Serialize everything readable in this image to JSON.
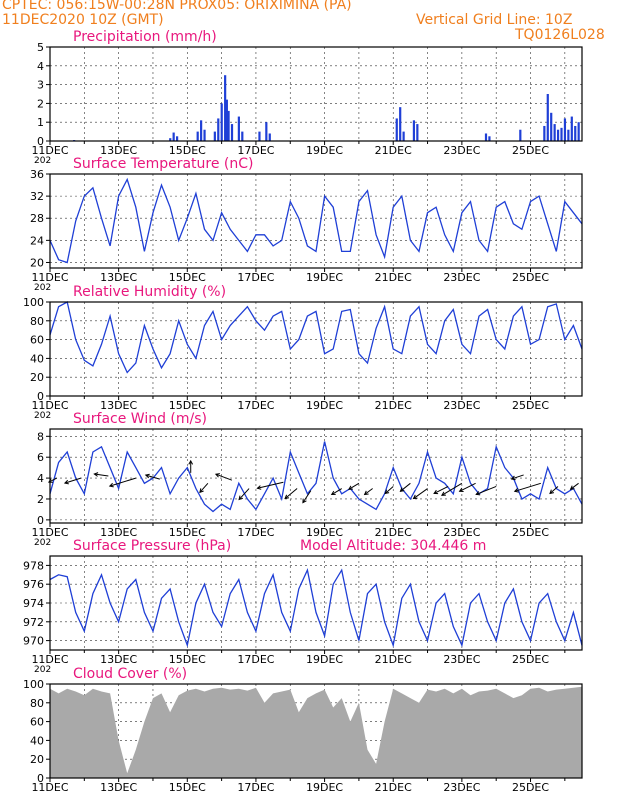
{
  "header": {
    "line1": "CPTEC:   056:15W-00:28N   PROX05: ORIXIMINA (PA)",
    "line2_left": "11DEC2020 10Z (GMT)",
    "line2_right": "Vertical Grid Line: 10Z",
    "line3_right": "TQ0126L028"
  },
  "colors": {
    "header": "#f07f1e",
    "title": "#e8177d",
    "series": "#1f3fd6",
    "cloud": "#a9a9a9",
    "wind_arrow": "#000000"
  },
  "x_tick_labels": [
    "11DEC",
    "13DEC",
    "15DEC",
    "17DEC",
    "19DEC",
    "21DEC",
    "23DEC",
    "25DEC"
  ],
  "stub_label": "202",
  "model_altitude": "Model Altitude: 304.446 m",
  "chart_data": [
    {
      "id": "precip",
      "type": "bar",
      "title": "Precipitation (mm/h)",
      "ylim": [
        0,
        5
      ],
      "yticks": [
        "0",
        "1",
        "2",
        "3",
        "4",
        "5"
      ],
      "x_unit": "days since 11DEC2020 10Z",
      "points": [
        [
          0.7,
          0.05
        ],
        [
          3.5,
          0.15
        ],
        [
          3.6,
          0.45
        ],
        [
          3.7,
          0.25
        ],
        [
          4.3,
          0.5
        ],
        [
          4.4,
          1.1
        ],
        [
          4.5,
          0.6
        ],
        [
          4.8,
          0.5
        ],
        [
          4.9,
          1.2
        ],
        [
          5.0,
          2.0
        ],
        [
          5.1,
          3.5
        ],
        [
          5.15,
          2.2
        ],
        [
          5.2,
          1.6
        ],
        [
          5.3,
          0.9
        ],
        [
          5.5,
          1.3
        ],
        [
          5.6,
          0.5
        ],
        [
          6.1,
          0.5
        ],
        [
          6.3,
          1.0
        ],
        [
          6.4,
          0.4
        ],
        [
          10.1,
          1.2
        ],
        [
          10.2,
          1.8
        ],
        [
          10.3,
          0.5
        ],
        [
          10.6,
          1.1
        ],
        [
          10.7,
          0.9
        ],
        [
          12.7,
          0.4
        ],
        [
          12.8,
          0.25
        ],
        [
          13.7,
          0.6
        ],
        [
          14.4,
          0.8
        ],
        [
          14.5,
          2.5
        ],
        [
          14.6,
          1.5
        ],
        [
          14.7,
          0.9
        ],
        [
          14.8,
          0.6
        ],
        [
          14.9,
          0.7
        ],
        [
          15.0,
          1.2
        ],
        [
          15.1,
          0.6
        ],
        [
          15.2,
          1.3
        ],
        [
          15.3,
          0.8
        ],
        [
          15.4,
          1.0
        ]
      ]
    },
    {
      "id": "temp",
      "type": "line",
      "title": "Surface Temperature (nC)",
      "ylim": [
        19,
        36
      ],
      "yticks": [
        "20",
        "24",
        "28",
        "32",
        "36"
      ],
      "x": [
        0,
        0.25,
        0.5,
        0.75,
        1,
        1.25,
        1.5,
        1.75,
        2,
        2.25,
        2.5,
        2.75,
        3,
        3.25,
        3.5,
        3.75,
        4,
        4.25,
        4.5,
        4.75,
        5,
        5.25,
        5.5,
        5.75,
        6,
        6.25,
        6.5,
        6.75,
        7,
        7.25,
        7.5,
        7.75,
        8,
        8.25,
        8.5,
        8.75,
        9,
        9.25,
        9.5,
        9.75,
        10,
        10.25,
        10.5,
        10.75,
        11,
        11.25,
        11.5,
        11.75,
        12,
        12.25,
        12.5,
        12.75,
        13,
        13.25,
        13.5,
        13.75,
        14,
        14.25,
        14.5,
        14.75,
        15,
        15.25,
        15.5
      ],
      "values": [
        24,
        20.5,
        20,
        27.5,
        32,
        33.5,
        28,
        23,
        32,
        35,
        30,
        22,
        29,
        34,
        30,
        24,
        28,
        32.5,
        26,
        24,
        29,
        26,
        24,
        22,
        25,
        25,
        23,
        24,
        31,
        28,
        23,
        22,
        32,
        30,
        22,
        22,
        31,
        33,
        25,
        21,
        30,
        32,
        24,
        22,
        29,
        30,
        25,
        22,
        29,
        31,
        24,
        22,
        30,
        31,
        27,
        26,
        31,
        32,
        27,
        22,
        31,
        29,
        27
      ]
    },
    {
      "id": "rh",
      "type": "line",
      "title": "Relative Humidity (%)",
      "ylim": [
        0,
        100
      ],
      "yticks": [
        "0",
        "20",
        "40",
        "60",
        "80",
        "100"
      ],
      "x": [
        0,
        0.25,
        0.5,
        0.75,
        1,
        1.25,
        1.5,
        1.75,
        2,
        2.25,
        2.5,
        2.75,
        3,
        3.25,
        3.5,
        3.75,
        4,
        4.25,
        4.5,
        4.75,
        5,
        5.25,
        5.5,
        5.75,
        6,
        6.25,
        6.5,
        6.75,
        7,
        7.25,
        7.5,
        7.75,
        8,
        8.25,
        8.5,
        8.75,
        9,
        9.25,
        9.5,
        9.75,
        10,
        10.25,
        10.5,
        10.75,
        11,
        11.25,
        11.5,
        11.75,
        12,
        12.25,
        12.5,
        12.75,
        13,
        13.25,
        13.5,
        13.75,
        14,
        14.25,
        14.5,
        14.75,
        15,
        15.25,
        15.5
      ],
      "values": [
        65,
        95,
        100,
        60,
        38,
        32,
        55,
        85,
        45,
        25,
        35,
        75,
        50,
        30,
        45,
        80,
        55,
        40,
        75,
        90,
        60,
        75,
        85,
        95,
        80,
        70,
        85,
        90,
        50,
        60,
        85,
        90,
        45,
        50,
        90,
        92,
        45,
        35,
        72,
        95,
        50,
        45,
        85,
        95,
        55,
        45,
        80,
        92,
        55,
        45,
        85,
        92,
        60,
        50,
        85,
        95,
        55,
        60,
        95,
        98,
        60,
        75,
        50
      ]
    },
    {
      "id": "wind",
      "type": "line",
      "title": "Surface Wind (m/s)",
      "ylim": [
        -0.3,
        8.7
      ],
      "yticks": [
        "0",
        "2",
        "4",
        "6",
        "8"
      ],
      "x": [
        0,
        0.25,
        0.5,
        0.75,
        1,
        1.25,
        1.5,
        1.75,
        2,
        2.25,
        2.5,
        2.75,
        3,
        3.25,
        3.5,
        3.75,
        4,
        4.25,
        4.5,
        4.75,
        5,
        5.25,
        5.5,
        5.75,
        6,
        6.25,
        6.5,
        6.75,
        7,
        7.25,
        7.5,
        7.75,
        8,
        8.25,
        8.5,
        8.75,
        9,
        9.25,
        9.5,
        9.75,
        10,
        10.25,
        10.5,
        10.75,
        11,
        11.25,
        11.5,
        11.75,
        12,
        12.25,
        12.5,
        12.75,
        13,
        13.25,
        13.5,
        13.75,
        14,
        14.25,
        14.5,
        14.75,
        15,
        15.25,
        15.5
      ],
      "values": [
        2.5,
        5.5,
        6.5,
        4,
        2.5,
        6.5,
        7,
        5,
        3,
        6.5,
        5,
        3.5,
        4,
        5,
        2.5,
        4,
        5,
        3,
        1.5,
        0.8,
        1.5,
        1,
        3.5,
        2,
        1,
        2.5,
        4,
        2,
        6.5,
        4.5,
        2.5,
        3.5,
        7.5,
        4,
        2.5,
        3,
        2,
        1.5,
        1,
        2.5,
        5,
        3,
        2,
        3.5,
        6.5,
        4,
        3.5,
        2.5,
        6,
        3.5,
        2.5,
        3,
        7,
        5,
        4,
        2,
        2.5,
        2,
        5,
        3,
        2.5,
        3,
        1.5
      ],
      "arrows": [
        [
          0.2,
          4.0,
          -8,
          4
        ],
        [
          0.9,
          4.0,
          -16,
          5
        ],
        [
          1.7,
          4.2,
          -14,
          -2
        ],
        [
          2.5,
          4.0,
          -26,
          8
        ],
        [
          3.2,
          3.9,
          -14,
          -4
        ],
        [
          4.1,
          4.5,
          0,
          -12
        ],
        [
          4.6,
          3.5,
          -8,
          9
        ],
        [
          5.3,
          3.8,
          -16,
          -6
        ],
        [
          5.8,
          3.0,
          -10,
          11
        ],
        [
          6.8,
          3.6,
          -26,
          6
        ],
        [
          7.2,
          3.0,
          -12,
          10
        ],
        [
          7.6,
          2.8,
          -8,
          12
        ],
        [
          8.5,
          3.0,
          -10,
          6
        ],
        [
          9.0,
          3.5,
          -10,
          6
        ],
        [
          9.4,
          3.0,
          -8,
          6
        ],
        [
          10.0,
          3.2,
          -8,
          7
        ],
        [
          10.5,
          3.5,
          -10,
          8
        ],
        [
          11.0,
          3.0,
          -14,
          10
        ],
        [
          11.6,
          3.2,
          -14,
          7
        ],
        [
          12.0,
          3.5,
          -20,
          12
        ],
        [
          12.4,
          3.5,
          -16,
          8
        ],
        [
          13.0,
          3.2,
          -20,
          8
        ],
        [
          13.8,
          4.3,
          -12,
          4
        ],
        [
          14.3,
          3.5,
          -26,
          8
        ],
        [
          14.8,
          3.2,
          -8,
          7
        ],
        [
          15.4,
          3.5,
          -8,
          6
        ]
      ]
    },
    {
      "id": "pres",
      "type": "line",
      "title": "Surface Pressure (hPa)",
      "ylim": [
        969,
        979
      ],
      "yticks": [
        "970",
        "972",
        "974",
        "976",
        "978"
      ],
      "x": [
        0,
        0.25,
        0.5,
        0.75,
        1,
        1.25,
        1.5,
        1.75,
        2,
        2.25,
        2.5,
        2.75,
        3,
        3.25,
        3.5,
        3.75,
        4,
        4.25,
        4.5,
        4.75,
        5,
        5.25,
        5.5,
        5.75,
        6,
        6.25,
        6.5,
        6.75,
        7,
        7.25,
        7.5,
        7.75,
        8,
        8.25,
        8.5,
        8.75,
        9,
        9.25,
        9.5,
        9.75,
        10,
        10.25,
        10.5,
        10.75,
        11,
        11.25,
        11.5,
        11.75,
        12,
        12.25,
        12.5,
        12.75,
        13,
        13.25,
        13.5,
        13.75,
        14,
        14.25,
        14.5,
        14.75,
        15,
        15.25,
        15.5
      ],
      "values": [
        976.5,
        977,
        976.8,
        973,
        971,
        975,
        977,
        974,
        972,
        975.5,
        976.5,
        973,
        971,
        974.5,
        975.5,
        972,
        969.5,
        974,
        976,
        973,
        971.5,
        975,
        976.5,
        973,
        971,
        975,
        977,
        973,
        971,
        975.5,
        977.5,
        973,
        970.5,
        976,
        977.5,
        973,
        970,
        975,
        976,
        972,
        969.5,
        974.5,
        976,
        972,
        970,
        974,
        975,
        971.5,
        969.5,
        974,
        975,
        972,
        970,
        974,
        975.5,
        972,
        970,
        974,
        975,
        972,
        970,
        973,
        969.5
      ]
    },
    {
      "id": "cloud",
      "type": "area",
      "title": "Cloud Cover (%)",
      "ylim": [
        0,
        100
      ],
      "yticks": [
        "0",
        "20",
        "40",
        "60",
        "80",
        "100"
      ],
      "x": [
        0,
        0.25,
        0.5,
        0.75,
        1,
        1.25,
        1.5,
        1.75,
        2,
        2.25,
        2.5,
        2.75,
        3,
        3.25,
        3.5,
        3.75,
        4,
        4.25,
        4.5,
        4.75,
        5,
        5.25,
        5.5,
        5.75,
        6,
        6.25,
        6.5,
        6.75,
        7,
        7.25,
        7.5,
        7.75,
        8,
        8.25,
        8.5,
        8.75,
        9,
        9.25,
        9.5,
        9.75,
        10,
        10.25,
        10.5,
        10.75,
        11,
        11.25,
        11.5,
        11.75,
        12,
        12.25,
        12.5,
        12.75,
        13,
        13.25,
        13.5,
        13.75,
        14,
        14.25,
        14.5,
        14.75,
        15,
        15.25,
        15.5
      ],
      "values": [
        95,
        90,
        95,
        92,
        88,
        95,
        92,
        90,
        40,
        5,
        30,
        60,
        85,
        90,
        70,
        88,
        93,
        95,
        92,
        95,
        96,
        94,
        95,
        93,
        96,
        80,
        90,
        92,
        94,
        70,
        85,
        90,
        94,
        75,
        85,
        60,
        80,
        30,
        15,
        60,
        95,
        90,
        85,
        80,
        94,
        92,
        95,
        90,
        95,
        88,
        92,
        93,
        95,
        90,
        85,
        88,
        95,
        96,
        92,
        94,
        95,
        96,
        97
      ]
    }
  ]
}
